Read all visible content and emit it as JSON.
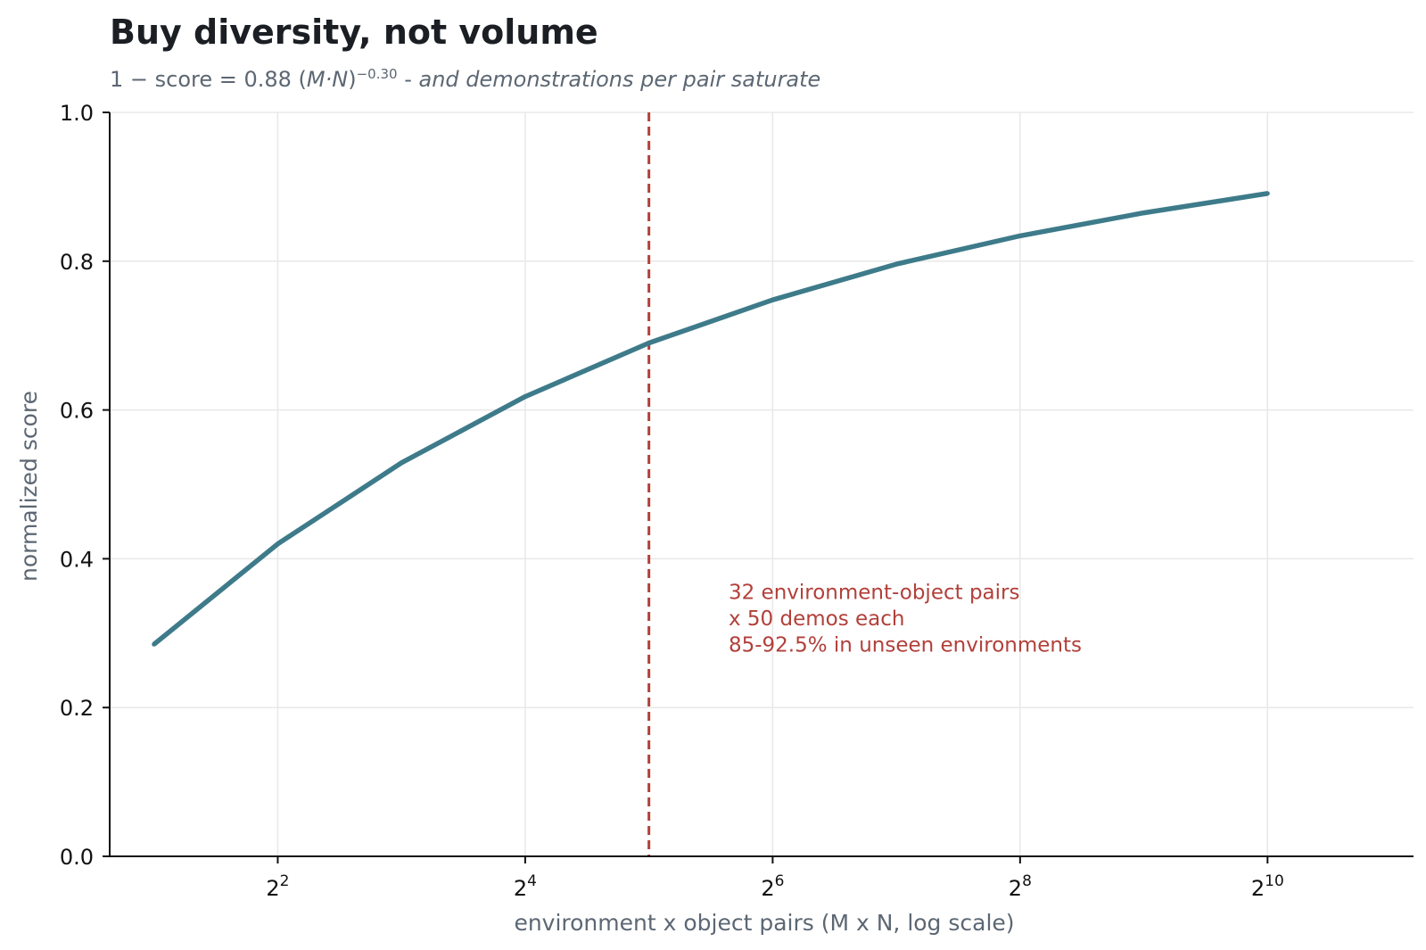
{
  "title": "Buy diversity, not volume",
  "subtitle": {
    "formula_prefix": "1 − score = 0.88 (",
    "formula_var": "M·N",
    "formula_suffix": ")",
    "formula_exponent": "−0.30",
    "separator": " - ",
    "note": "and demonstrations per pair saturate"
  },
  "colors": {
    "line": "#3e7b8a",
    "marker": "#b2403a",
    "grid": "#e8e8e8",
    "axis": "#111111",
    "label": "#5c6773"
  },
  "chart_data": {
    "type": "line",
    "title": "Buy diversity, not volume",
    "xlabel": "environment x object pairs (M x N, log scale)",
    "ylabel": "normalized score",
    "x_scale": "log2",
    "xlim": [
      1.56,
      2320
    ],
    "ylim": [
      0,
      1.0
    ],
    "grid": true,
    "x_ticks": [
      {
        "value": 4,
        "base": "2",
        "exp": "2"
      },
      {
        "value": 16,
        "base": "2",
        "exp": "4"
      },
      {
        "value": 64,
        "base": "2",
        "exp": "6"
      },
      {
        "value": 256,
        "base": "2",
        "exp": "8"
      },
      {
        "value": 1024,
        "base": "2",
        "exp": "10"
      }
    ],
    "y_ticks": [
      "0.0",
      "0.2",
      "0.4",
      "0.6",
      "0.8",
      "1.0"
    ],
    "series": [
      {
        "x": [
          2,
          4,
          8,
          16,
          32,
          64,
          128,
          256,
          512,
          1024
        ],
        "y": [
          0.285,
          0.42,
          0.529,
          0.618,
          0.69,
          0.748,
          0.796,
          0.834,
          0.865,
          0.891
        ]
      }
    ],
    "vline": {
      "x": 32,
      "style": "dashed"
    },
    "annotation": {
      "lines": [
        "32 environment-object pairs",
        "x 50 demos each",
        "85-92.5% in unseen environments"
      ],
      "x": 50,
      "y": 0.285
    }
  }
}
